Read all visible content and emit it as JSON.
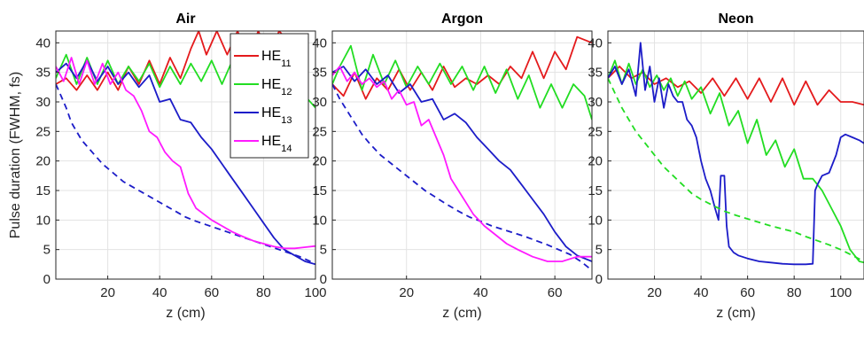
{
  "chart_data": [
    {
      "type": "line",
      "title": "Air",
      "xlabel": "z (cm)",
      "ylabel": "Pulse duration (FWHM, fs)",
      "xlim": [
        0,
        100
      ],
      "ylim": [
        0,
        42
      ],
      "xticks": [
        20,
        40,
        60,
        80,
        100
      ],
      "yticks": [
        0,
        5,
        10,
        15,
        20,
        25,
        30,
        35,
        40
      ],
      "grid": true,
      "legend": {
        "placement": "top-right",
        "entries": [
          {
            "base": "HE",
            "sub": "11",
            "color": "#e41a1c"
          },
          {
            "base": "HE",
            "sub": "12",
            "color": "#22dd22"
          },
          {
            "base": "HE",
            "sub": "13",
            "color": "#1c1cc8"
          },
          {
            "base": "HE",
            "sub": "14",
            "color": "#ff1aff"
          }
        ]
      },
      "series": [
        {
          "mode": "HE11",
          "color": "#e41a1c",
          "style": "solid",
          "x": [
            0,
            4,
            8,
            12,
            16,
            20,
            24,
            28,
            32,
            36,
            40,
            44,
            48,
            52,
            55,
            58,
            62,
            66,
            70,
            74,
            78,
            82,
            86,
            90
          ],
          "y": [
            33,
            34,
            32,
            34.5,
            32,
            35,
            32,
            36,
            33,
            37,
            33,
            37.5,
            34,
            39,
            42,
            38,
            42,
            38,
            42,
            37.5,
            42,
            38,
            42,
            40
          ]
        },
        {
          "mode": "HE12",
          "color": "#22dd22",
          "style": "solid",
          "x": [
            0,
            4,
            8,
            12,
            16,
            20,
            24,
            28,
            32,
            36,
            40,
            44,
            48,
            52,
            56,
            60,
            64,
            68,
            72,
            76,
            80,
            84,
            88,
            92,
            96,
            100
          ],
          "y": [
            34,
            38,
            33,
            37.5,
            33,
            37,
            33,
            36,
            33.5,
            36.5,
            32.5,
            36,
            33,
            36.5,
            33.5,
            37,
            33,
            37,
            33.5,
            36.5,
            33,
            35.5,
            32,
            33,
            31,
            29
          ]
        },
        {
          "mode": "HE13",
          "color": "#1c1cc8",
          "style": "solid",
          "x": [
            0,
            4,
            8,
            12,
            16,
            20,
            24,
            28,
            32,
            36,
            40,
            44,
            48,
            52,
            56,
            60,
            64,
            68,
            72,
            76,
            80,
            84,
            88,
            92,
            96,
            100
          ],
          "y": [
            35,
            36.5,
            34,
            37,
            33.5,
            36,
            33,
            35,
            32.5,
            34.5,
            30,
            30.5,
            27,
            26.5,
            24,
            22,
            19.5,
            17,
            14.5,
            12,
            9.5,
            7,
            5,
            4,
            3,
            2.5
          ]
        },
        {
          "mode": "HE13",
          "color": "#1c1cc8",
          "style": "dashed",
          "x": [
            0,
            2,
            4,
            6,
            8,
            10,
            14,
            18,
            22,
            26,
            30,
            34,
            38,
            42,
            46,
            50,
            54,
            58,
            62,
            66,
            70,
            74,
            78,
            82,
            86,
            90,
            94,
            98,
            100
          ],
          "y": [
            33,
            31,
            29,
            26.5,
            25,
            23.5,
            21.5,
            19.5,
            18,
            16.5,
            15.5,
            14.5,
            13.5,
            12.5,
            11.5,
            10.5,
            9.8,
            9.2,
            8.6,
            8,
            7.4,
            6.8,
            6.2,
            5.6,
            5,
            4.4,
            3.8,
            3,
            2.5
          ]
        },
        {
          "mode": "HE14",
          "color": "#ff1aff",
          "style": "solid",
          "x": [
            0,
            3,
            6,
            9,
            12,
            15,
            18,
            21,
            24,
            27,
            30,
            33,
            36,
            39,
            42,
            45,
            48,
            51,
            54,
            57,
            60,
            64,
            68,
            72,
            76,
            80,
            84,
            88,
            92,
            96,
            100
          ],
          "y": [
            36,
            33.5,
            37.5,
            33,
            37,
            33,
            36.5,
            33,
            35,
            32,
            31,
            28.5,
            25,
            24,
            21.5,
            20,
            19,
            14.5,
            12,
            11,
            10,
            9,
            8,
            7.2,
            6.5,
            6,
            5.5,
            5.2,
            5.2,
            5.4,
            5.6
          ]
        }
      ]
    },
    {
      "type": "line",
      "title": "Argon",
      "xlabel": "z (cm)",
      "ylabel": "",
      "xlim": [
        0,
        70
      ],
      "ylim": [
        0,
        42
      ],
      "xticks": [
        20,
        40,
        60
      ],
      "yticks": [
        0,
        5,
        10,
        15,
        20,
        25,
        30,
        35,
        40
      ],
      "grid": true,
      "series": [
        {
          "mode": "HE11",
          "color": "#e41a1c",
          "style": "solid",
          "x": [
            0,
            3,
            6,
            9,
            12,
            15,
            18,
            21,
            24,
            27,
            30,
            33,
            36,
            39,
            42,
            45,
            48,
            51,
            54,
            57,
            60,
            63,
            66,
            70
          ],
          "y": [
            33,
            31,
            35,
            30.5,
            34,
            32,
            35.5,
            32,
            35,
            32,
            36,
            32.5,
            34,
            33,
            34.5,
            33,
            36,
            34,
            38.5,
            34,
            38.5,
            35.5,
            41,
            40
          ]
        },
        {
          "mode": "HE12",
          "color": "#22dd22",
          "style": "solid",
          "x": [
            0,
            2,
            5,
            8,
            11,
            14,
            17,
            20,
            23,
            26,
            29,
            32,
            35,
            38,
            41,
            44,
            47,
            50,
            53,
            56,
            59,
            62,
            65,
            68,
            70
          ],
          "y": [
            33,
            36,
            39.5,
            32,
            38,
            33,
            37,
            32.5,
            36,
            33,
            36.5,
            33,
            36,
            32,
            36,
            31.5,
            35.5,
            30.5,
            34.5,
            29,
            33,
            29,
            33,
            31,
            27
          ]
        },
        {
          "mode": "HE13",
          "color": "#1c1cc8",
          "style": "solid",
          "x": [
            0,
            3,
            6,
            9,
            12,
            15,
            18,
            21,
            24,
            27,
            30,
            33,
            36,
            39,
            42,
            45,
            48,
            51,
            54,
            57,
            60,
            63,
            66,
            70
          ],
          "y": [
            35,
            36,
            33.5,
            35.5,
            33,
            34.5,
            31.5,
            33,
            30,
            30.5,
            27,
            28,
            26.5,
            24,
            22,
            20,
            18.5,
            16,
            13.5,
            11,
            8,
            5.5,
            4,
            3
          ]
        },
        {
          "mode": "HE13",
          "color": "#1c1cc8",
          "style": "dashed",
          "x": [
            0,
            2,
            4,
            6,
            8,
            10,
            13,
            16,
            19,
            22,
            25,
            28,
            31,
            34,
            37,
            40,
            43,
            46,
            49,
            52,
            55,
            58,
            61,
            64,
            67,
            70
          ],
          "y": [
            33,
            30.5,
            28.5,
            26.5,
            24.5,
            23,
            21,
            19.5,
            18,
            16.5,
            15,
            13.8,
            12.6,
            11.5,
            10.5,
            9.8,
            9,
            8.4,
            7.8,
            7.2,
            6.5,
            5.8,
            5,
            4.2,
            3,
            1.5
          ]
        },
        {
          "mode": "HE14",
          "color": "#ff1aff",
          "style": "solid",
          "x": [
            0,
            2,
            4,
            6,
            8,
            10,
            12,
            14,
            16,
            18,
            20,
            22,
            24,
            26,
            28,
            30,
            32,
            34,
            36,
            38,
            41,
            44,
            47,
            50,
            54,
            58,
            62,
            66,
            70
          ],
          "y": [
            34.5,
            36,
            33.5,
            35,
            33,
            34,
            32.5,
            33.5,
            30.5,
            32,
            29.5,
            30,
            26,
            27,
            24,
            21,
            17,
            15,
            13,
            11,
            9,
            7.5,
            6,
            5,
            3.8,
            3,
            3,
            3.8,
            3.8
          ]
        }
      ]
    },
    {
      "type": "line",
      "title": "Neon",
      "xlabel": "z (cm)",
      "ylabel": "",
      "xlim": [
        0,
        110
      ],
      "ylim": [
        0,
        42
      ],
      "xticks": [
        20,
        40,
        60,
        80,
        100
      ],
      "yticks": [
        0,
        5,
        10,
        15,
        20,
        25,
        30,
        35,
        40
      ],
      "grid": true,
      "series": [
        {
          "mode": "HE11",
          "color": "#e41a1c",
          "style": "solid",
          "x": [
            0,
            5,
            10,
            15,
            20,
            25,
            30,
            35,
            40,
            45,
            50,
            55,
            60,
            65,
            70,
            75,
            80,
            85,
            90,
            95,
            100,
            105,
            110
          ],
          "y": [
            34,
            36,
            34,
            35,
            33,
            34,
            32.5,
            33.5,
            31.5,
            34,
            31,
            34,
            30.5,
            34,
            30,
            34,
            29.5,
            33.5,
            29.5,
            32,
            30,
            30,
            29.5
          ]
        },
        {
          "mode": "HE12",
          "color": "#22dd22",
          "style": "solid",
          "x": [
            0,
            3,
            6,
            9,
            12,
            15,
            18,
            21,
            24,
            27,
            30,
            33,
            36,
            40,
            44,
            48,
            52,
            56,
            60,
            64,
            68,
            72,
            76,
            80,
            84,
            88,
            92,
            96,
            100,
            104,
            108,
            110
          ],
          "y": [
            34,
            37,
            33,
            36.5,
            33,
            35.5,
            32.5,
            34.5,
            32,
            34,
            31,
            33.5,
            30.5,
            32.5,
            28,
            31.5,
            26,
            28.5,
            23,
            27,
            21,
            23.5,
            19,
            22,
            17,
            17,
            15,
            12,
            9,
            5,
            3,
            2.8
          ]
        },
        {
          "mode": "HE13",
          "color": "#1c1cc8",
          "style": "solid",
          "x": [
            0,
            3,
            6,
            9,
            12,
            14,
            16,
            18,
            20,
            22,
            24,
            26,
            28,
            30,
            32,
            34,
            36,
            38,
            40,
            42,
            44,
            46,
            47.5,
            48.5,
            50,
            51,
            52,
            54,
            56,
            60,
            65,
            70,
            75,
            80,
            85,
            88,
            89,
            90,
            92,
            95,
            98,
            100,
            102,
            105,
            108,
            110
          ],
          "y": [
            34,
            36,
            33,
            35.5,
            31,
            40,
            32,
            36,
            30,
            34,
            29,
            33,
            31,
            30,
            30,
            27,
            26,
            24,
            20,
            17,
            15,
            12,
            10,
            17.5,
            17.5,
            9,
            5.5,
            4.5,
            4,
            3.5,
            3,
            2.8,
            2.6,
            2.5,
            2.5,
            2.6,
            15,
            16,
            17.5,
            18,
            21,
            24,
            24.5,
            24,
            23.5,
            23
          ]
        },
        {
          "mode": "HE12",
          "color": "#22dd22",
          "style": "dashed",
          "x": [
            0,
            3,
            6,
            9,
            12,
            15,
            18,
            21,
            24,
            28,
            32,
            36,
            40,
            45,
            50,
            55,
            60,
            65,
            70,
            75,
            80,
            85,
            90,
            95,
            100,
            105,
            110
          ],
          "y": [
            34,
            31.5,
            29,
            27,
            25,
            23.5,
            22,
            20.5,
            19,
            17.5,
            16,
            14.5,
            13.5,
            12.5,
            11.5,
            10.8,
            10.2,
            9.6,
            9,
            8.5,
            8,
            7.2,
            6.5,
            5.8,
            5,
            4,
            3
          ]
        }
      ]
    }
  ]
}
